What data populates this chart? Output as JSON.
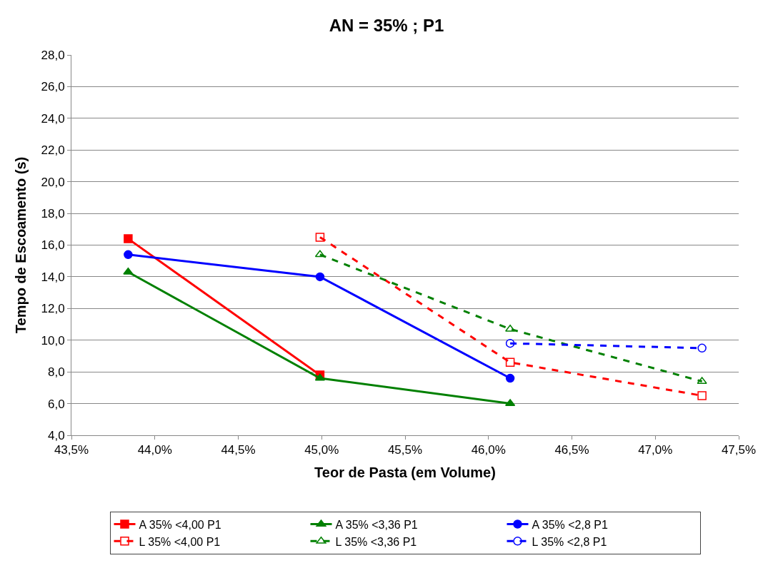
{
  "chart_data": {
    "type": "line",
    "title": "AN = 35% ; P1",
    "xlabel": "Teor de Pasta (em Volume)",
    "ylabel": "Tempo de Escoamento (s)",
    "xlim": [
      43.5,
      47.5
    ],
    "xticks": [
      {
        "value": 43.5,
        "label": "43,5%"
      },
      {
        "value": 44.0,
        "label": "44,0%"
      },
      {
        "value": 44.5,
        "label": "44,5%"
      },
      {
        "value": 45.0,
        "label": "45,0%"
      },
      {
        "value": 45.5,
        "label": "45,5%"
      },
      {
        "value": 46.0,
        "label": "46,0%"
      },
      {
        "value": 46.5,
        "label": "46,5%"
      },
      {
        "value": 47.0,
        "label": "47,0%"
      },
      {
        "value": 47.5,
        "label": "47,5%"
      }
    ],
    "ylim": [
      4,
      28
    ],
    "yticks": [
      {
        "value": 4,
        "label": "4,0"
      },
      {
        "value": 6,
        "label": "6,0"
      },
      {
        "value": 8,
        "label": "8,0"
      },
      {
        "value": 10,
        "label": "10,0"
      },
      {
        "value": 12,
        "label": "12,0"
      },
      {
        "value": 14,
        "label": "14,0"
      },
      {
        "value": 16,
        "label": "16,0"
      },
      {
        "value": 18,
        "label": "18,0"
      },
      {
        "value": 20,
        "label": "20,0"
      },
      {
        "value": 22,
        "label": "22,0"
      },
      {
        "value": 24,
        "label": "24,0"
      },
      {
        "value": 26,
        "label": "26,0"
      },
      {
        "value": 28,
        "label": "28,0"
      }
    ],
    "grid": "y",
    "legend": "bottom",
    "series": [
      {
        "name": "A 35% <4,00 P1",
        "color": "#ff0000",
        "marker": "square",
        "line_style": "solid",
        "x": [
          43.84,
          44.99
        ],
        "values": [
          16.4,
          7.8
        ]
      },
      {
        "name": "A 35% <3,36 P1",
        "color": "#008000",
        "marker": "triangle",
        "line_style": "solid",
        "x": [
          43.84,
          44.99,
          46.13
        ],
        "values": [
          14.3,
          7.6,
          6.0
        ]
      },
      {
        "name": "A 35% <2,8 P1",
        "color": "#0000ff",
        "marker": "circle",
        "line_style": "solid",
        "x": [
          43.84,
          44.99,
          46.13
        ],
        "values": [
          15.4,
          14.0,
          7.6
        ]
      },
      {
        "name": "L 35% <4,00 P1",
        "color": "#ff0000",
        "marker": "square-open",
        "line_style": "dashed",
        "x": [
          44.99,
          46.13,
          47.28
        ],
        "values": [
          16.5,
          8.6,
          6.5
        ]
      },
      {
        "name": "L 35% <3,36 P1",
        "color": "#008000",
        "marker": "triangle-open",
        "line_style": "dashed",
        "x": [
          44.99,
          46.13,
          47.28
        ],
        "values": [
          15.4,
          10.7,
          7.4
        ]
      },
      {
        "name": "L 35% <2,8 P1",
        "color": "#0000ff",
        "marker": "circle-open",
        "line_style": "dashed",
        "x": [
          46.13,
          47.28
        ],
        "values": [
          9.8,
          9.5
        ]
      }
    ]
  }
}
